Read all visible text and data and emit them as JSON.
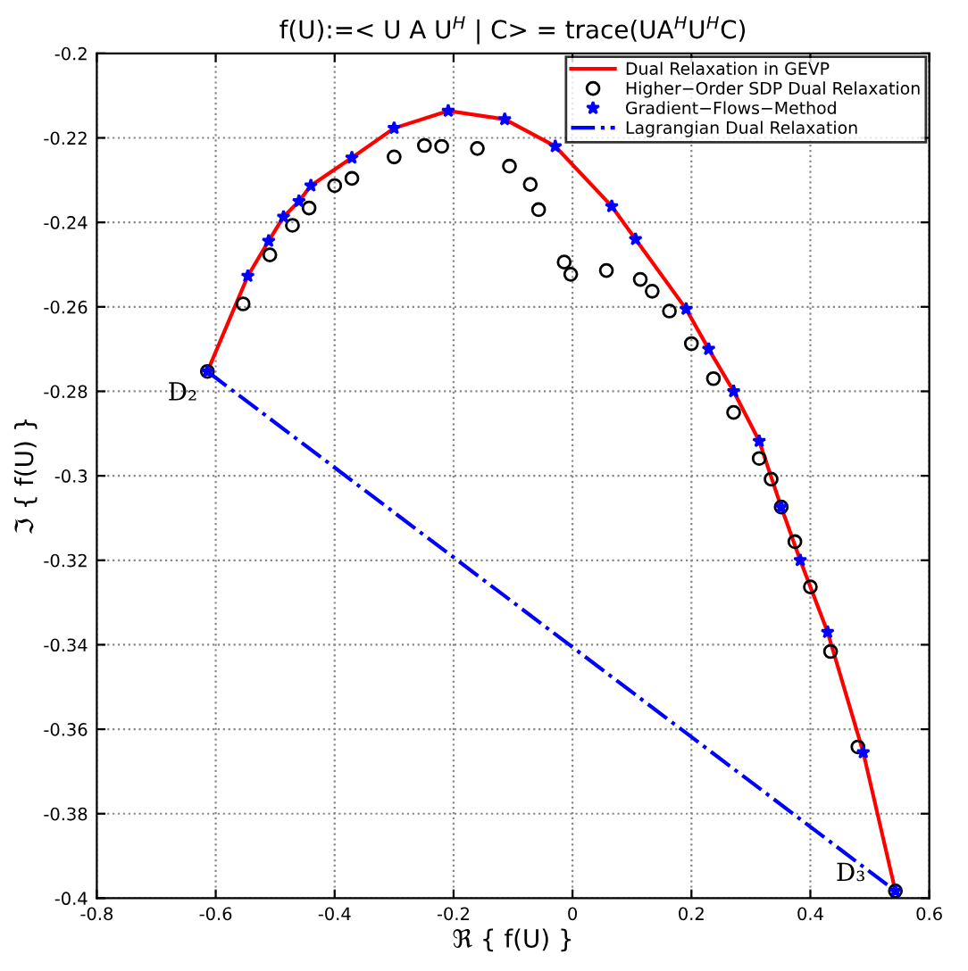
{
  "chart_data": {
    "type": "line",
    "title": "f(U):=< U A U$^{H}$ | C> = trace(UA$^{H}$U$^{H}$C)",
    "xlabel": "ℜ { f(U) }",
    "ylabel": "ℑ { f(U) }",
    "xlim": [
      -0.8,
      0.6
    ],
    "xticks": [
      -0.8,
      -0.6,
      -0.4,
      -0.2,
      0,
      0.2,
      0.4,
      0.6
    ],
    "ylim": [
      -0.4,
      -0.2
    ],
    "yticks": [
      -0.4,
      -0.38,
      -0.36,
      -0.34,
      -0.32,
      -0.3,
      -0.28,
      -0.26,
      -0.24,
      -0.22,
      -0.2
    ],
    "grid": true,
    "legend": "top right",
    "annotations": [
      {
        "text": "D₂",
        "x": -0.614,
        "y": -0.2753
      },
      {
        "text": "D₃",
        "x": 0.543,
        "y": -0.3983
      }
    ],
    "series": [
      {
        "name": "Dual Relaxation in GEVP",
        "color": "#ff0000",
        "marker": "none",
        "line_style": "solid",
        "x": [
          -0.614,
          -0.546,
          -0.511,
          -0.486,
          -0.46,
          -0.44,
          -0.371,
          -0.3,
          -0.209,
          -0.114,
          -0.029,
          0.066,
          0.106,
          0.191,
          0.229,
          0.271,
          0.314,
          0.351,
          0.383,
          0.429,
          0.489,
          0.543
        ],
        "values": [
          -0.2753,
          -0.2527,
          -0.2444,
          -0.2387,
          -0.235,
          -0.2313,
          -0.2247,
          -0.2177,
          -0.2136,
          -0.2156,
          -0.222,
          -0.2362,
          -0.244,
          -0.2605,
          -0.27,
          -0.28,
          -0.2918,
          -0.3074,
          -0.32,
          -0.337,
          -0.3655,
          -0.3983
        ]
      },
      {
        "name": "Higher−Order SDP Dual Relaxation",
        "type": "scatter",
        "color": "#000000",
        "marker": "circle",
        "x": [
          -0.614,
          -0.554,
          -0.509,
          -0.471,
          -0.443,
          -0.4,
          -0.371,
          -0.3,
          -0.249,
          -0.22,
          -0.16,
          -0.106,
          -0.071,
          -0.057,
          -0.014,
          -0.003,
          0.057,
          0.114,
          0.134,
          0.163,
          0.2,
          0.237,
          0.271,
          0.314,
          0.334,
          0.351,
          0.374,
          0.4,
          0.434,
          0.48,
          0.543
        ],
        "values": [
          -0.2753,
          -0.2593,
          -0.2477,
          -0.2407,
          -0.2366,
          -0.2313,
          -0.2296,
          -0.2245,
          -0.2218,
          -0.222,
          -0.2225,
          -0.2267,
          -0.231,
          -0.237,
          -0.2494,
          -0.2523,
          -0.2514,
          -0.2535,
          -0.2563,
          -0.261,
          -0.2687,
          -0.277,
          -0.285,
          -0.2959,
          -0.3008,
          -0.3074,
          -0.3156,
          -0.3263,
          -0.3416,
          -0.3642,
          -0.3983
        ]
      },
      {
        "name": "Gradient−Flows−Method",
        "type": "scatter",
        "color": "#0000ff",
        "marker": "star",
        "x": [
          -0.614,
          -0.546,
          -0.511,
          -0.486,
          -0.46,
          -0.44,
          -0.371,
          -0.3,
          -0.209,
          -0.114,
          -0.029,
          0.066,
          0.106,
          0.191,
          0.229,
          0.271,
          0.314,
          0.351,
          0.383,
          0.429,
          0.489,
          0.543
        ],
        "values": [
          -0.2753,
          -0.2527,
          -0.2444,
          -0.2387,
          -0.235,
          -0.2313,
          -0.2247,
          -0.2177,
          -0.2136,
          -0.2156,
          -0.222,
          -0.2362,
          -0.244,
          -0.2605,
          -0.27,
          -0.28,
          -0.2918,
          -0.3074,
          -0.32,
          -0.337,
          -0.3655,
          -0.3983
        ]
      },
      {
        "name": "Lagrangian Dual Relaxation",
        "color": "#0000ff",
        "marker": "none",
        "line_style": "dashdot",
        "x": [
          -0.614,
          0.543
        ],
        "values": [
          -0.2753,
          -0.3983
        ]
      }
    ]
  }
}
